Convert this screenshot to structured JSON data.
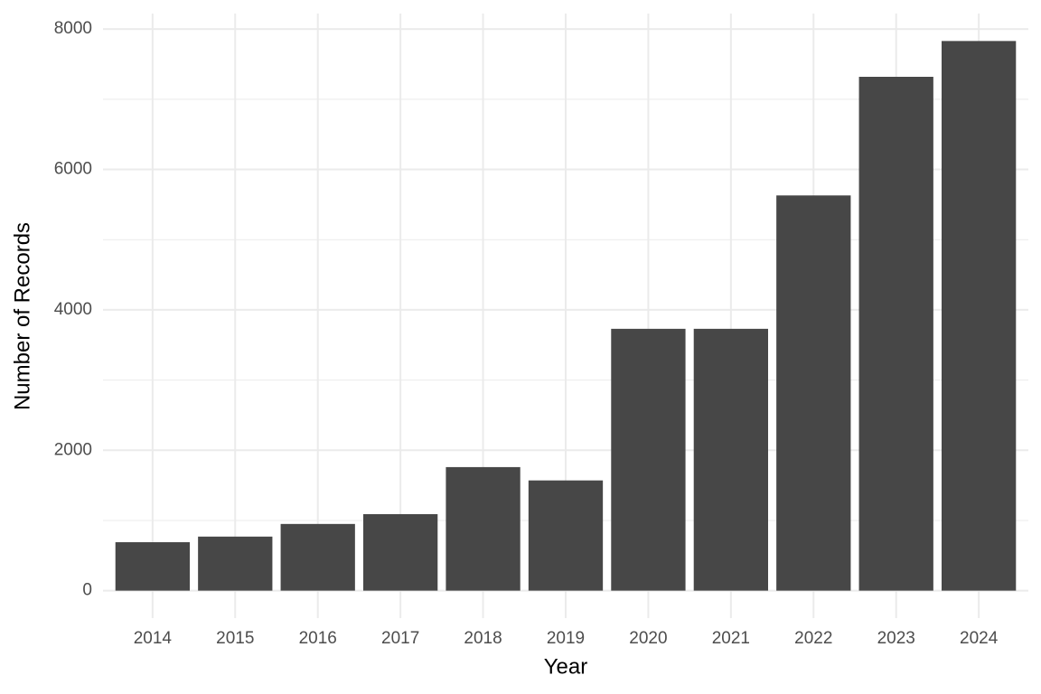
{
  "chart_data": {
    "type": "bar",
    "x_label": "Year",
    "y_label": "Number of Records",
    "categories": [
      "2014",
      "2015",
      "2016",
      "2017",
      "2018",
      "2019",
      "2020",
      "2021",
      "2022",
      "2023",
      "2024"
    ],
    "values": [
      690,
      770,
      950,
      1090,
      1760,
      1570,
      3730,
      3730,
      5630,
      7320,
      7830
    ],
    "color": "#474747",
    "ylim": [
      -391,
      8221
    ],
    "yticks": [
      0,
      2000,
      4000,
      6000,
      8000
    ],
    "minor_yticks": [
      1000,
      3000,
      5000,
      7000
    ],
    "grid": true
  }
}
